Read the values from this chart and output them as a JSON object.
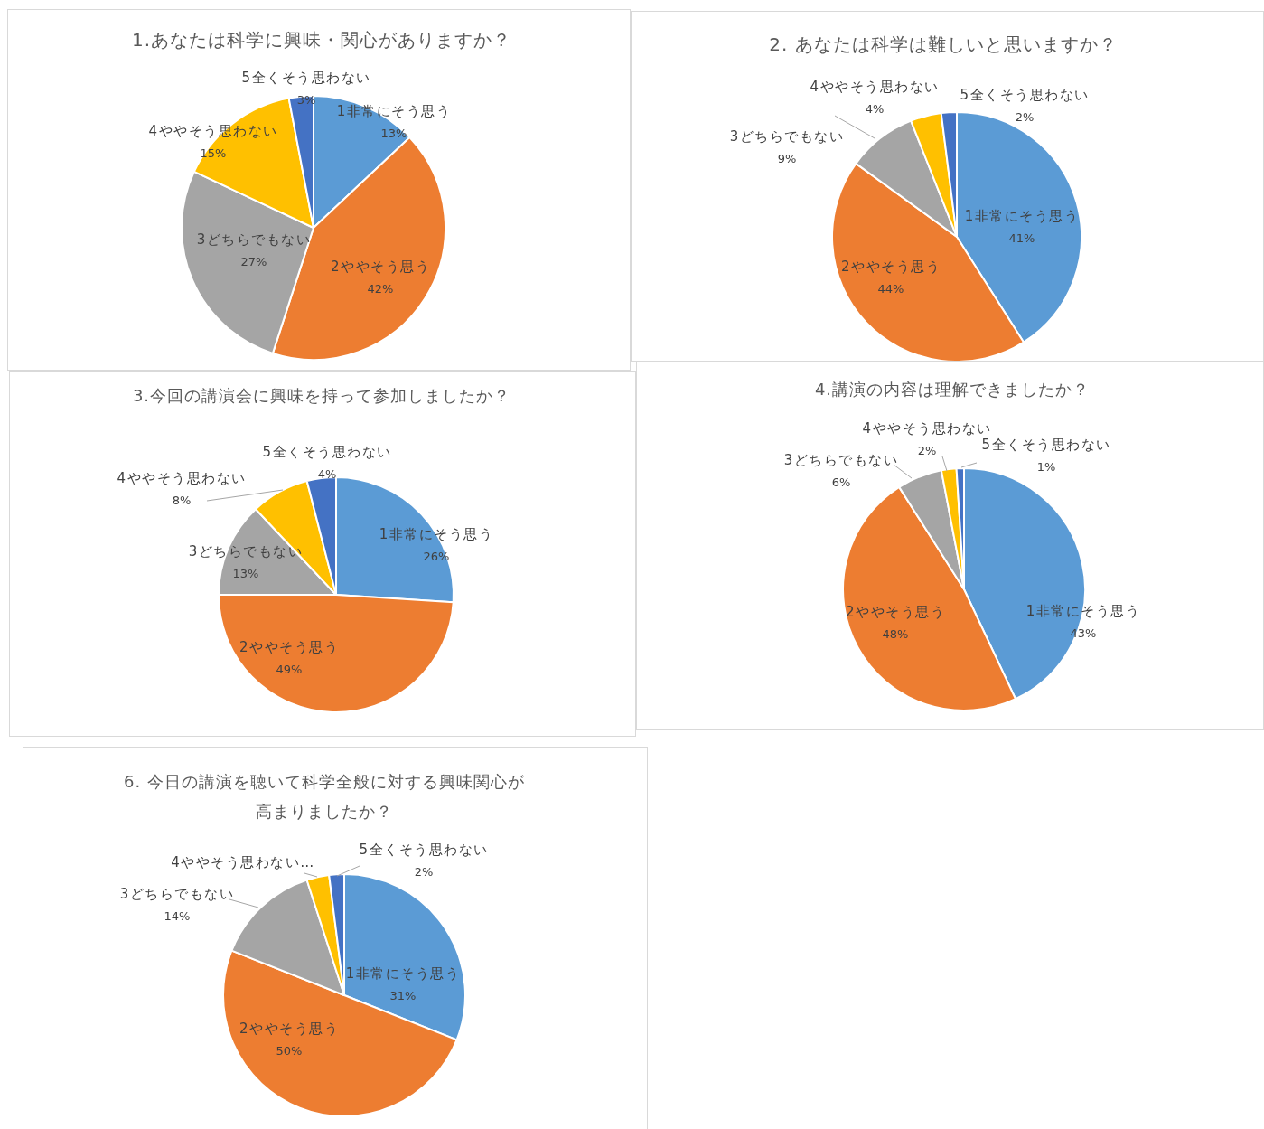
{
  "chart_data": [
    {
      "type": "pie",
      "title": "1.あなたは科学に興味・関心がありますか？",
      "categories": [
        "1非常にそう思う",
        "2ややそう思う",
        "3どちらでもない",
        "4ややそう思わない",
        "5全くそう思わない"
      ],
      "values": [
        13,
        42,
        27,
        15,
        3
      ],
      "colors": [
        "#5b9bd5",
        "#ed7d31",
        "#a5a5a5",
        "#ffc000",
        "#4472c4"
      ],
      "value_labels": [
        "13%",
        "42%",
        "27%",
        "15%",
        "3%"
      ]
    },
    {
      "type": "pie",
      "title": "2. あなたは科学は難しいと思いますか？",
      "categories": [
        "1非常にそう思う",
        "2ややそう思う",
        "3どちらでもない",
        "4ややそう思わない",
        "5全くそう思わない"
      ],
      "values": [
        41,
        44,
        9,
        4,
        2
      ],
      "colors": [
        "#5b9bd5",
        "#ed7d31",
        "#a5a5a5",
        "#ffc000",
        "#4472c4"
      ],
      "value_labels": [
        "41%",
        "44%",
        "9%",
        "4%",
        "2%"
      ]
    },
    {
      "type": "pie",
      "title": "3.今回の講演会に興味を持って参加しましたか？",
      "categories": [
        "1非常にそう思う",
        "2ややそう思う",
        "3どちらでもない",
        "4ややそう思わない",
        "5全くそう思わない"
      ],
      "values": [
        26,
        49,
        13,
        8,
        4
      ],
      "colors": [
        "#5b9bd5",
        "#ed7d31",
        "#a5a5a5",
        "#ffc000",
        "#4472c4"
      ],
      "value_labels": [
        "26%",
        "49%",
        "13%",
        "8%",
        "4%"
      ]
    },
    {
      "type": "pie",
      "title": "4.講演の内容は理解できましたか？",
      "categories": [
        "1非常にそう思う",
        "2ややそう思う",
        "3どちらでもない",
        "4ややそう思わない",
        "5全くそう思わない"
      ],
      "values": [
        43,
        48,
        6,
        2,
        1
      ],
      "colors": [
        "#5b9bd5",
        "#ed7d31",
        "#a5a5a5",
        "#ffc000",
        "#4472c4"
      ],
      "value_labels": [
        "43%",
        "48%",
        "6%",
        "2%",
        "1%"
      ]
    },
    {
      "type": "pie",
      "title": "6. 今日の講演を聴いて科学全般に対する興味関心が高まりましたか？",
      "categories": [
        "1非常にそう思う",
        "2ややそう思う",
        "3どちらでもない",
        "4ややそう思わない…",
        "5全くそう思わない"
      ],
      "values": [
        31,
        50,
        14,
        3,
        2
      ],
      "colors": [
        "#5b9bd5",
        "#ed7d31",
        "#a5a5a5",
        "#ffc000",
        "#4472c4"
      ],
      "value_labels": [
        "31%",
        "50%",
        "14%",
        null,
        "2%"
      ]
    }
  ]
}
